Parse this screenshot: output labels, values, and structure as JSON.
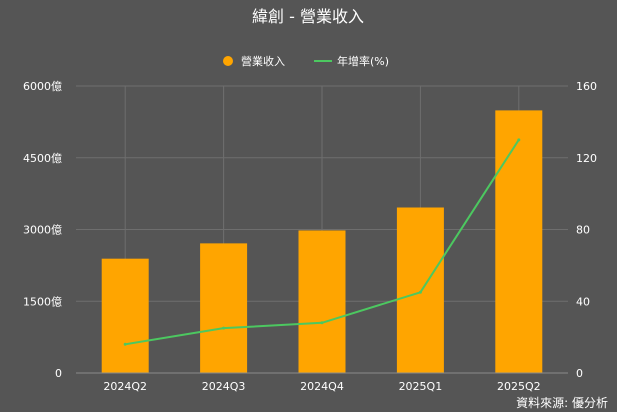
{
  "chart_data": {
    "type": "bar",
    "title": "緯創 - 營業收入",
    "categories": [
      "2024Q2",
      "2024Q3",
      "2024Q4",
      "2025Q1",
      "2025Q2"
    ],
    "series": [
      {
        "name": "營業收入",
        "type": "bar",
        "axis": "left",
        "color": "#FFA500",
        "values": [
          2390,
          2710,
          2980,
          3460,
          5490
        ]
      },
      {
        "name": "年增率(%)",
        "type": "line",
        "axis": "right",
        "color": "#4CC860",
        "values": [
          16,
          25,
          28,
          45,
          130
        ]
      }
    ],
    "y_left": {
      "range": [
        0,
        6000
      ],
      "ticks": [
        0,
        1500,
        3000,
        4500,
        6000
      ],
      "tick_labels": [
        "0",
        "1500億",
        "3000億",
        "4500億",
        "6000億"
      ]
    },
    "y_right": {
      "range": [
        0,
        160
      ],
      "ticks": [
        0,
        40,
        80,
        120,
        160
      ],
      "tick_labels": [
        "0",
        "40",
        "80",
        "120",
        "160"
      ]
    },
    "grid": true,
    "legend": "top-center",
    "source": "資料來源: 優分析"
  }
}
